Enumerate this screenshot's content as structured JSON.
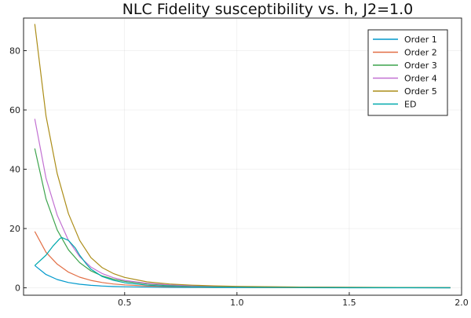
{
  "chart_data": {
    "type": "line",
    "title": "NLC Fidelity susceptibility vs. h, J2=1.0",
    "xlabel": "",
    "ylabel": "",
    "xlim": [
      0.05,
      2.0
    ],
    "ylim": [
      -2.5,
      91
    ],
    "xticks": [
      0.5,
      1.0,
      1.5,
      2.0
    ],
    "xtick_labels": [
      "0.5",
      "1.0",
      "1.5",
      "2.0"
    ],
    "yticks": [
      0,
      20,
      40,
      60,
      80
    ],
    "ytick_labels": [
      "0",
      "20",
      "40",
      "60",
      "80"
    ],
    "grid": true,
    "legend_position": "top-right",
    "series": [
      {
        "name": "Order 1",
        "color": "#0099cc",
        "points": [
          [
            0.1,
            7.5
          ],
          [
            0.15,
            4.5
          ],
          [
            0.2,
            2.8
          ],
          [
            0.25,
            1.8
          ],
          [
            0.3,
            1.2
          ],
          [
            0.35,
            0.85
          ],
          [
            0.4,
            0.6
          ],
          [
            0.45,
            0.45
          ],
          [
            0.5,
            0.35
          ],
          [
            0.6,
            0.22
          ],
          [
            0.7,
            0.15
          ],
          [
            0.8,
            0.11
          ],
          [
            0.9,
            0.08
          ],
          [
            1.0,
            0.06
          ],
          [
            1.25,
            0.03
          ],
          [
            1.5,
            0.02
          ],
          [
            1.75,
            0.01
          ],
          [
            1.95,
            0.01
          ]
        ]
      },
      {
        "name": "Order 2",
        "color": "#e26f46",
        "points": [
          [
            0.1,
            19
          ],
          [
            0.15,
            12
          ],
          [
            0.2,
            8
          ],
          [
            0.25,
            5.3
          ],
          [
            0.3,
            3.6
          ],
          [
            0.35,
            2.5
          ],
          [
            0.4,
            1.8
          ],
          [
            0.45,
            1.3
          ],
          [
            0.5,
            1.0
          ],
          [
            0.6,
            0.6
          ],
          [
            0.7,
            0.4
          ],
          [
            0.8,
            0.28
          ],
          [
            0.9,
            0.2
          ],
          [
            1.0,
            0.15
          ],
          [
            1.25,
            0.08
          ],
          [
            1.5,
            0.05
          ],
          [
            1.75,
            0.03
          ],
          [
            1.95,
            0.02
          ]
        ]
      },
      {
        "name": "Order 3",
        "color": "#3da44d",
        "points": [
          [
            0.1,
            47
          ],
          [
            0.15,
            30
          ],
          [
            0.2,
            19.5
          ],
          [
            0.25,
            12.8
          ],
          [
            0.3,
            8.5
          ],
          [
            0.35,
            5.7
          ],
          [
            0.4,
            4.0
          ],
          [
            0.45,
            2.9
          ],
          [
            0.5,
            2.2
          ],
          [
            0.6,
            1.3
          ],
          [
            0.7,
            0.85
          ],
          [
            0.8,
            0.6
          ],
          [
            0.9,
            0.45
          ],
          [
            1.0,
            0.35
          ],
          [
            1.25,
            0.2
          ],
          [
            1.5,
            0.12
          ],
          [
            1.75,
            0.08
          ],
          [
            1.95,
            0.06
          ]
        ]
      },
      {
        "name": "Order 4",
        "color": "#c271d2",
        "points": [
          [
            0.1,
            57
          ],
          [
            0.15,
            37
          ],
          [
            0.2,
            24.5
          ],
          [
            0.25,
            16
          ],
          [
            0.3,
            10.5
          ],
          [
            0.35,
            7.0
          ],
          [
            0.4,
            4.8
          ],
          [
            0.45,
            3.4
          ],
          [
            0.5,
            2.5
          ],
          [
            0.6,
            1.5
          ],
          [
            0.7,
            1.0
          ],
          [
            0.8,
            0.7
          ],
          [
            0.9,
            0.5
          ],
          [
            1.0,
            0.4
          ],
          [
            1.25,
            0.22
          ],
          [
            1.5,
            0.14
          ],
          [
            1.75,
            0.09
          ],
          [
            1.95,
            0.07
          ]
        ]
      },
      {
        "name": "Order 5",
        "color": "#ac8d18",
        "points": [
          [
            0.1,
            89
          ],
          [
            0.15,
            58
          ],
          [
            0.2,
            38.5
          ],
          [
            0.25,
            25
          ],
          [
            0.3,
            16
          ],
          [
            0.35,
            10.2
          ],
          [
            0.4,
            6.8
          ],
          [
            0.45,
            4.8
          ],
          [
            0.5,
            3.5
          ],
          [
            0.6,
            2.0
          ],
          [
            0.7,
            1.3
          ],
          [
            0.8,
            0.9
          ],
          [
            0.9,
            0.65
          ],
          [
            1.0,
            0.5
          ],
          [
            1.25,
            0.28
          ],
          [
            1.5,
            0.17
          ],
          [
            1.75,
            0.11
          ],
          [
            1.95,
            0.08
          ]
        ]
      },
      {
        "name": "ED",
        "color": "#00a9ad",
        "points": [
          [
            0.1,
            7.5
          ],
          [
            0.15,
            11
          ],
          [
            0.18,
            14
          ],
          [
            0.21,
            16.5
          ],
          [
            0.22,
            17
          ],
          [
            0.25,
            16
          ],
          [
            0.28,
            13.5
          ],
          [
            0.3,
            11
          ],
          [
            0.33,
            8
          ],
          [
            0.35,
            6.3
          ],
          [
            0.4,
            3.8
          ],
          [
            0.45,
            2.5
          ],
          [
            0.5,
            1.7
          ],
          [
            0.6,
            0.9
          ],
          [
            0.7,
            0.55
          ],
          [
            0.8,
            0.35
          ],
          [
            0.9,
            0.25
          ],
          [
            1.0,
            0.18
          ],
          [
            1.25,
            0.09
          ],
          [
            1.5,
            0.05
          ],
          [
            1.75,
            0.03
          ],
          [
            1.95,
            0.02
          ]
        ]
      }
    ]
  }
}
